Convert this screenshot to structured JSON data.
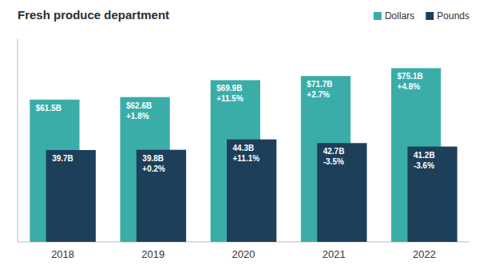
{
  "chart_data": {
    "type": "bar",
    "title": "Fresh produce department",
    "categories": [
      "2018",
      "2019",
      "2020",
      "2021",
      "2022"
    ],
    "series": [
      {
        "name": "Dollars",
        "color": "#3AADA8",
        "values": [
          61.5,
          62.6,
          69.9,
          71.7,
          75.1
        ],
        "value_labels": [
          "$61.5B",
          "$62.6B",
          "$69.9B",
          "$71.7B",
          "$75.1B"
        ],
        "change_labels": [
          null,
          "+1.8%",
          "+11.5%",
          "+2.7%",
          "+4.8%"
        ]
      },
      {
        "name": "Pounds",
        "color": "#1E3F5A",
        "values": [
          39.7,
          39.8,
          44.3,
          42.7,
          41.2
        ],
        "value_labels": [
          "39.7B",
          "39.8B",
          "44.3B",
          "42.7B",
          "41.2B"
        ],
        "change_labels": [
          null,
          "+0.2%",
          "+11.1%",
          "-3.5%",
          "-3.6%"
        ]
      }
    ],
    "ylim": [
      0,
      88
    ],
    "grid": false,
    "tick_labels": "x",
    "legend": "upper right",
    "data_labels": true
  }
}
